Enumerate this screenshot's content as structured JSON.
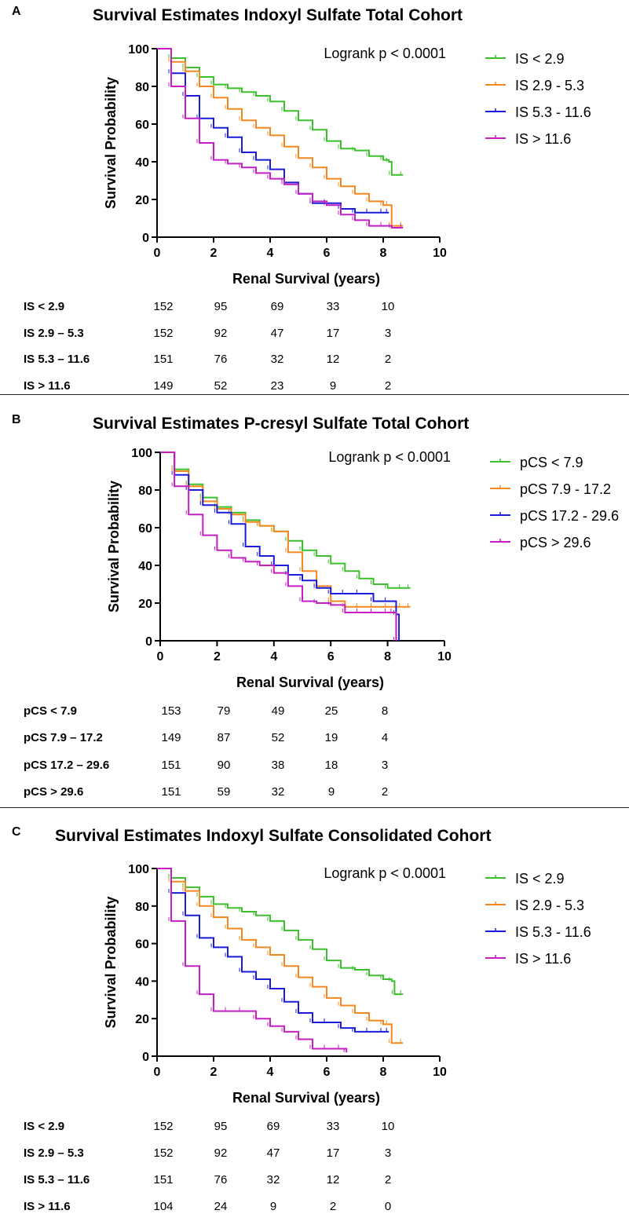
{
  "panels": [
    {
      "letter": "A",
      "title": "Survival Estimates Indoxyl Sulfate Total  Cohort"
    },
    {
      "letter": "B",
      "title": "Survival Estimates P-cresyl Sulfate Total  Cohort"
    },
    {
      "letter": "C",
      "title": "Survival Estimates  Indoxyl Sulfate Consolidated Cohort"
    }
  ],
  "chart_data": [
    {
      "type": "line",
      "title": "Survival Estimates Indoxyl Sulfate Total  Cohort",
      "xlabel": "Renal  Survival  (years)",
      "ylabel": "Survival  Probability",
      "xlim": [
        0,
        10
      ],
      "ylim": [
        0,
        100
      ],
      "xticks": [
        "0",
        "2",
        "4",
        "6",
        "8",
        "10"
      ],
      "yticks": [
        "0",
        "20",
        "40",
        "60",
        "80",
        "100"
      ],
      "annotation": "Logrank p < 0.0001",
      "legend_position": "right",
      "series": [
        {
          "name": "IS < 2.9",
          "color": "#3cbf2c",
          "x": [
            0,
            0.5,
            1,
            1.5,
            2,
            2.5,
            3,
            3.5,
            4,
            4.5,
            5,
            5.5,
            6,
            6.5,
            7,
            7.5,
            8,
            8.2,
            8.3,
            8.7
          ],
          "y": [
            100,
            95,
            90,
            85,
            81,
            79,
            77,
            75,
            72,
            67,
            62,
            57,
            51,
            47,
            46,
            43,
            41,
            40,
            33,
            33
          ]
        },
        {
          "name": "IS 2.9 - 5.3",
          "color": "#f5871f",
          "x": [
            0,
            0.5,
            1,
            1.5,
            2,
            2.5,
            3,
            3.5,
            4,
            4.5,
            5,
            5.5,
            6,
            6.5,
            7,
            7.5,
            8,
            8.2,
            8.3,
            8.7
          ],
          "y": [
            100,
            93,
            88,
            80,
            74,
            68,
            62,
            58,
            54,
            48,
            42,
            37,
            31,
            27,
            23,
            19,
            17,
            17,
            6,
            6
          ]
        },
        {
          "name": "IS 5.3 - 11.6",
          "color": "#1b1bdc",
          "x": [
            0,
            0.5,
            1,
            1.5,
            2,
            2.5,
            3,
            3.5,
            4,
            4.5,
            5,
            5.5,
            6,
            6.5,
            7,
            7.5,
            8,
            8.2
          ],
          "y": [
            100,
            87,
            75,
            63,
            58,
            53,
            45,
            41,
            36,
            29,
            23,
            18,
            18,
            15,
            13,
            13,
            13,
            13
          ]
        },
        {
          "name": "IS > 11.6",
          "color": "#c41ec4",
          "x": [
            0,
            0.5,
            1,
            1.5,
            2,
            2.5,
            3,
            3.5,
            4,
            4.5,
            5,
            5.5,
            6,
            6.5,
            7,
            7.5,
            8,
            8.3,
            8.7
          ],
          "y": [
            100,
            80,
            63,
            50,
            41,
            39,
            37,
            34,
            31,
            28,
            23,
            19,
            17,
            12,
            9,
            6,
            6,
            5,
            5
          ]
        }
      ],
      "risk_table": {
        "labels": [
          "IS < 2.9",
          "IS 2.9 – 5.3",
          "IS 5.3 – 11.6",
          "IS > 11.6"
        ],
        "rows": [
          [
            "152",
            "95",
            "69",
            "33",
            "10"
          ],
          [
            "152",
            "92",
            "47",
            "17",
            "3"
          ],
          [
            "151",
            "76",
            "32",
            "12",
            "2"
          ],
          [
            "149",
            "52",
            "23",
            "9",
            "2"
          ]
        ]
      }
    },
    {
      "type": "line",
      "title": "Survival Estimates P-cresyl Sulfate Total  Cohort",
      "xlabel": "Renal  Survival  (years)",
      "ylabel": "Survival  Probability",
      "xlim": [
        0,
        10
      ],
      "ylim": [
        0,
        100
      ],
      "xticks": [
        "0",
        "2",
        "4",
        "6",
        "8",
        "10"
      ],
      "yticks": [
        "0",
        "20",
        "40",
        "60",
        "80",
        "100"
      ],
      "annotation": "Logrank p < 0.0001",
      "legend_position": "right",
      "series": [
        {
          "name": "pCS < 7.9",
          "color": "#3cbf2c",
          "x": [
            0,
            0.5,
            1,
            1.5,
            2,
            2.5,
            3,
            3.5,
            4,
            4.5,
            5,
            5.5,
            6,
            6.5,
            7,
            7.5,
            8,
            8.5,
            8.8
          ],
          "y": [
            100,
            91,
            83,
            76,
            71,
            68,
            64,
            61,
            58,
            53,
            48,
            45,
            41,
            37,
            33,
            30,
            28,
            28,
            28
          ]
        },
        {
          "name": "pCS 7.9 - 17.2",
          "color": "#f5871f",
          "x": [
            0,
            0.5,
            1,
            1.5,
            2,
            2.5,
            3,
            3.5,
            4,
            4.5,
            5,
            5.5,
            6,
            6.5,
            7,
            7.5,
            8,
            8.5,
            8.8
          ],
          "y": [
            100,
            90,
            82,
            74,
            70,
            67,
            63,
            61,
            58,
            47,
            37,
            29,
            21,
            18,
            18,
            18,
            18,
            18,
            18
          ]
        },
        {
          "name": "pCS 17.2 - 29.6",
          "color": "#1b1bdc",
          "x": [
            0,
            0.5,
            1,
            1.5,
            2,
            2.5,
            3,
            3.5,
            4,
            4.5,
            5,
            5.5,
            6,
            6.5,
            7,
            7.5,
            8,
            8.3,
            8.4
          ],
          "y": [
            100,
            88,
            80,
            72,
            68,
            62,
            50,
            45,
            40,
            35,
            32,
            28,
            25,
            25,
            25,
            21,
            21,
            14,
            0
          ]
        },
        {
          "name": "pCS > 29.6",
          "color": "#c41ec4",
          "x": [
            0,
            0.5,
            1,
            1.5,
            2,
            2.5,
            3,
            3.5,
            4,
            4.5,
            5,
            5.5,
            6,
            6.5,
            7,
            7.5,
            8,
            8.2,
            8.3
          ],
          "y": [
            100,
            82,
            67,
            56,
            48,
            44,
            42,
            40,
            36,
            29,
            21,
            20,
            19,
            15,
            15,
            15,
            15,
            15,
            0
          ]
        }
      ],
      "risk_table": {
        "labels": [
          "pCS < 7.9",
          "pCS 7.9 – 17.2",
          "pCS 17.2 – 29.6",
          "pCS > 29.6"
        ],
        "rows": [
          [
            "153",
            "79",
            "49",
            "25",
            "8"
          ],
          [
            "149",
            "87",
            "52",
            "19",
            "4"
          ],
          [
            "151",
            "90",
            "38",
            "18",
            "3"
          ],
          [
            "151",
            "59",
            "32",
            "9",
            "2"
          ]
        ]
      }
    },
    {
      "type": "line",
      "title": "Survival Estimates  Indoxyl Sulfate Consolidated Cohort",
      "xlabel": "Renal  Survival  (years)",
      "ylabel": "Survival  Probability",
      "xlim": [
        0,
        10
      ],
      "ylim": [
        0,
        100
      ],
      "xticks": [
        "0",
        "2",
        "4",
        "6",
        "8",
        "10"
      ],
      "yticks": [
        "0",
        "20",
        "40",
        "60",
        "80",
        "100"
      ],
      "annotation": "Logrank p < 0.0001",
      "legend_position": "right",
      "series": [
        {
          "name": "IS < 2.9",
          "color": "#3cbf2c",
          "x": [
            0,
            0.5,
            1,
            1.5,
            2,
            2.5,
            3,
            3.5,
            4,
            4.5,
            5,
            5.5,
            6,
            6.5,
            7,
            7.5,
            8,
            8.3,
            8.4,
            8.7
          ],
          "y": [
            100,
            95,
            90,
            85,
            81,
            79,
            77,
            75,
            72,
            67,
            62,
            57,
            51,
            47,
            46,
            43,
            41,
            40,
            33,
            33
          ]
        },
        {
          "name": "IS 2.9 - 5.3",
          "color": "#f5871f",
          "x": [
            0,
            0.5,
            1,
            1.5,
            2,
            2.5,
            3,
            3.5,
            4,
            4.5,
            5,
            5.5,
            6,
            6.5,
            7,
            7.5,
            8,
            8.2,
            8.3,
            8.7
          ],
          "y": [
            100,
            93,
            88,
            80,
            74,
            68,
            62,
            58,
            54,
            48,
            42,
            37,
            31,
            27,
            23,
            19,
            17,
            17,
            7,
            7
          ]
        },
        {
          "name": "IS 5.3 - 11.6",
          "color": "#1b1bdc",
          "x": [
            0,
            0.5,
            1,
            1.5,
            2,
            2.5,
            3,
            3.5,
            4,
            4.5,
            5,
            5.5,
            6,
            6.5,
            7,
            7.5,
            8,
            8.2
          ],
          "y": [
            100,
            87,
            75,
            63,
            58,
            53,
            45,
            41,
            36,
            29,
            23,
            18,
            18,
            15,
            13,
            13,
            13,
            13
          ]
        },
        {
          "name": "IS > 11.6",
          "color": "#c41ec4",
          "x": [
            0,
            0.5,
            1,
            1.5,
            2,
            2.5,
            3,
            3.5,
            4,
            4.5,
            5,
            5.5,
            6,
            6.5,
            6.7
          ],
          "y": [
            100,
            72,
            48,
            33,
            24,
            24,
            24,
            20,
            16,
            13,
            9,
            4,
            4,
            4,
            2
          ]
        }
      ],
      "risk_table": {
        "labels": [
          "IS < 2.9",
          "IS 2.9 – 5.3",
          "IS 5.3 – 11.6",
          "IS > 11.6"
        ],
        "rows": [
          [
            "152",
            "95",
            "69",
            "33",
            "10"
          ],
          [
            "152",
            "92",
            "47",
            "17",
            "3"
          ],
          [
            "151",
            "76",
            "32",
            "12",
            "2"
          ],
          [
            "104",
            "24",
            "9",
            "2",
            "0"
          ]
        ]
      }
    }
  ]
}
